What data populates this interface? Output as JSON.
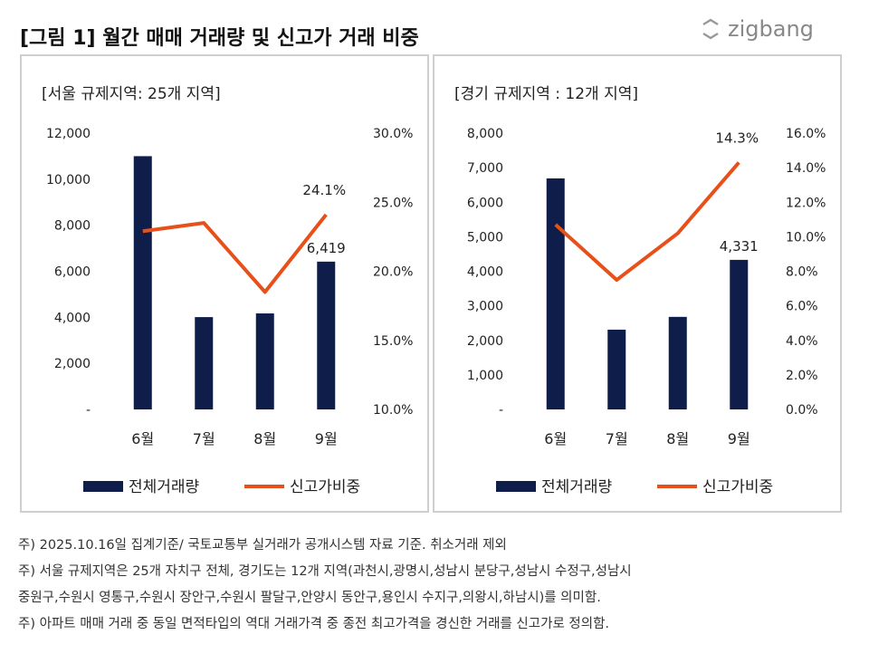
{
  "title": "[그림 1] 월간 매매 거래량 및 신고가 거래 비중",
  "logo": "zigbang",
  "colors": {
    "bar": "#0f1d4a",
    "line": "#e8501a"
  },
  "chart_data": [
    {
      "type": "bar+line",
      "title": "[서울 규제지역: 25개 지역]",
      "categories": [
        "6월",
        "7월",
        "8월",
        "9월"
      ],
      "series": [
        {
          "name": "전체거래량",
          "type": "bar",
          "axis": "left",
          "values": [
            11000,
            4010,
            4170,
            6419
          ]
        },
        {
          "name": "신고가비중",
          "type": "line",
          "axis": "right",
          "values": [
            22.9,
            23.5,
            18.5,
            24.1
          ]
        }
      ],
      "y_left": {
        "range": [
          0,
          12000
        ],
        "ticks": [
          "-",
          "2,000",
          "4,000",
          "6,000",
          "8,000",
          "10,000",
          "12,000"
        ]
      },
      "y_right": {
        "range": [
          10,
          30
        ],
        "ticks": [
          "10.0%",
          "15.0%",
          "20.0%",
          "25.0%",
          "30.0%"
        ]
      },
      "data_labels": [
        {
          "series": "전체거래량",
          "category": "9월",
          "text": "6,419"
        },
        {
          "series": "신고가비중",
          "category": "9월",
          "text": "24.1%"
        }
      ],
      "grid": false,
      "legend": "bottom"
    },
    {
      "type": "bar+line",
      "title": "[경기 규제지역 : 12개 지역]",
      "categories": [
        "6월",
        "7월",
        "8월",
        "9월"
      ],
      "series": [
        {
          "name": "전체거래량",
          "type": "bar",
          "axis": "left",
          "values": [
            6690,
            2310,
            2680,
            4331
          ]
        },
        {
          "name": "신고가비중",
          "type": "line",
          "axis": "right",
          "values": [
            10.7,
            7.5,
            10.2,
            14.3
          ]
        }
      ],
      "y_left": {
        "range": [
          0,
          8000
        ],
        "ticks": [
          "-",
          "1,000",
          "2,000",
          "3,000",
          "4,000",
          "5,000",
          "6,000",
          "7,000",
          "8,000"
        ]
      },
      "y_right": {
        "range": [
          0,
          16
        ],
        "ticks": [
          "0.0%",
          "2.0%",
          "4.0%",
          "6.0%",
          "8.0%",
          "10.0%",
          "12.0%",
          "14.0%",
          "16.0%"
        ]
      },
      "data_labels": [
        {
          "series": "전체거래량",
          "category": "9월",
          "text": "4,331"
        },
        {
          "series": "신고가비중",
          "category": "9월",
          "text": "14.3%"
        }
      ],
      "grid": false,
      "legend": "bottom"
    }
  ],
  "notes": [
    "주) 2025.10.16일 집계기준/ 국토교통부 실거래가 공개시스템 자료 기준. 취소거래 제외",
    "주) 서울 규제지역은 25개 자치구 전체, 경기도는  12개 지역(과천시,광명시,성남시 분당구,성남시 수정구,성남시",
    "중원구,수원시 영통구,수원시 장안구,수원시 팔달구,안양시 동안구,용인시 수지구,의왕시,하남시)를 의미함.",
    "주) 아파트 매매 거래 중 동일 면적타입의 역대 거래가격 중 종전 최고가격을 경신한 거래를 신고가로 정의함."
  ]
}
